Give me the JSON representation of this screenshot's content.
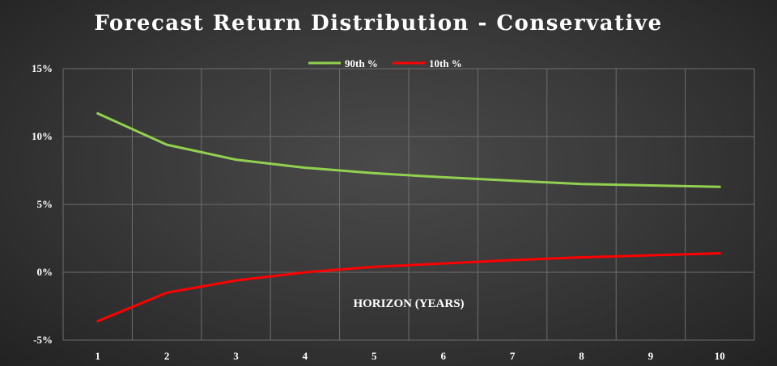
{
  "chart_data": {
    "type": "line",
    "title": "Forecast Return Distribution - Conservative",
    "xlabel": "HORIZON (YEARS)",
    "ylabel": "",
    "categories": [
      "1",
      "2",
      "3",
      "4",
      "5",
      "6",
      "7",
      "8",
      "9",
      "10"
    ],
    "ylim": [
      -5,
      15
    ],
    "yticks": [
      "15%",
      "10%",
      "5%",
      "0%",
      "-5%"
    ],
    "ytick_values": [
      15,
      10,
      5,
      0,
      -5
    ],
    "grid": true,
    "legend_position": "top-center",
    "series": [
      {
        "name": "90th %",
        "color": "#92d050",
        "values": [
          11.7,
          9.4,
          8.3,
          7.7,
          7.3,
          7.0,
          6.75,
          6.5,
          6.4,
          6.3
        ]
      },
      {
        "name": "10th %",
        "color": "#ff0000",
        "values": [
          -3.6,
          -1.5,
          -0.6,
          0.0,
          0.4,
          0.65,
          0.9,
          1.1,
          1.25,
          1.4
        ]
      }
    ]
  }
}
